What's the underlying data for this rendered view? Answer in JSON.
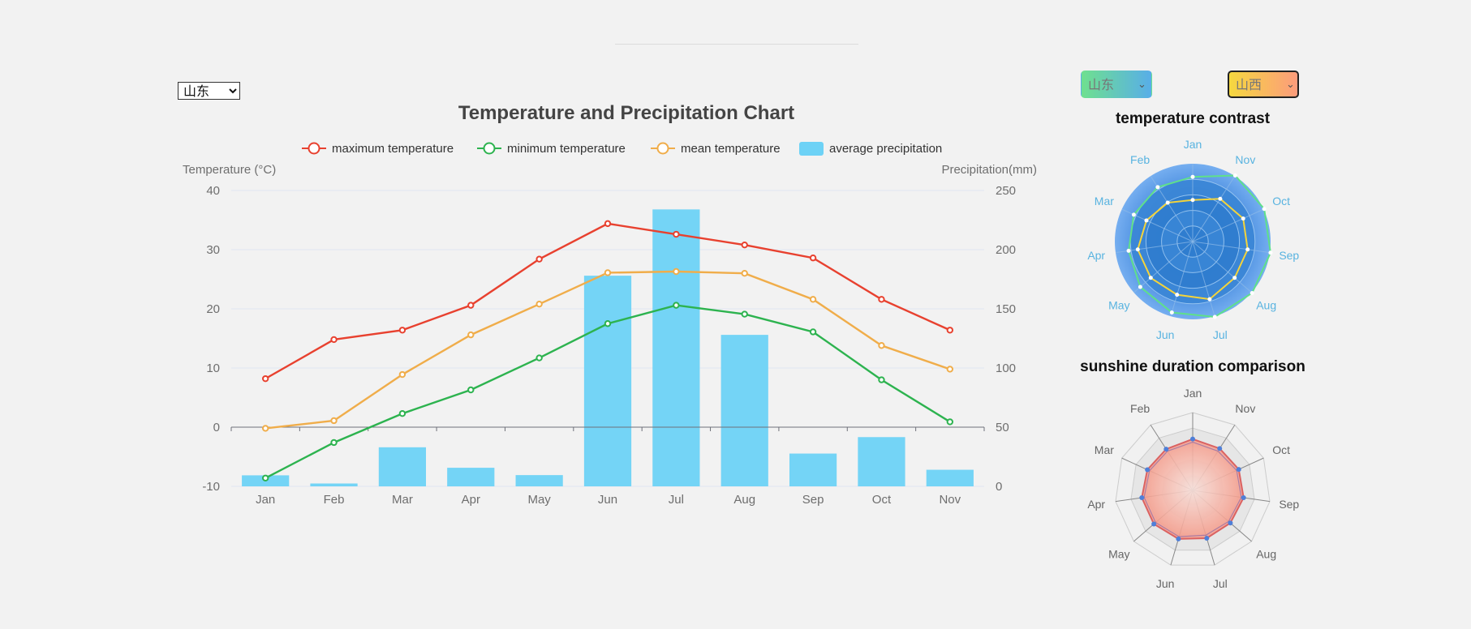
{
  "province_select": {
    "selected": "山东",
    "options": [
      "山东"
    ]
  },
  "left_gradient_select": {
    "selected": "山东"
  },
  "right_gradient_select": {
    "selected": "山西"
  },
  "colors": {
    "max": "#e8412f",
    "min": "#2db34f",
    "mean": "#f0ad4a",
    "precip": "#6dd2f6",
    "axis_text": "#6e6e6e",
    "radar_label": "#58b3e0"
  },
  "chart_data": [
    {
      "type": "bar+line",
      "title": "Temperature and Precipitation Chart",
      "categories": [
        "Jan",
        "Feb",
        "Mar",
        "Apr",
        "May",
        "Jun",
        "Jul",
        "Aug",
        "Sep",
        "Oct",
        "Nov"
      ],
      "ylabel_left": "Temperature (°C)",
      "ylabel_right": "Precipitation(mm)",
      "ylim_left": [
        -10,
        40
      ],
      "yticks_left": [
        "40",
        "30",
        "20",
        "10",
        "0",
        "-10"
      ],
      "ylim_right": [
        0,
        250
      ],
      "yticks_right": [
        "250",
        "200",
        "150",
        "100",
        "50",
        "0"
      ],
      "legend_position": "top",
      "series": [
        {
          "name": "maximum temperature",
          "type": "line",
          "axis": "left",
          "values": [
            8.2,
            14.8,
            16.4,
            20.6,
            28.4,
            34.4,
            32.6,
            30.8,
            28.6,
            21.6,
            16.4
          ]
        },
        {
          "name": "minimum temperature",
          "type": "line",
          "axis": "left",
          "values": [
            -8.6,
            -2.6,
            2.3,
            6.3,
            11.7,
            17.5,
            20.6,
            19.1,
            16.1,
            8.0,
            0.9
          ]
        },
        {
          "name": "mean temperature",
          "type": "line",
          "axis": "left",
          "values": [
            -0.2,
            1.1,
            8.9,
            15.6,
            20.8,
            26.1,
            26.3,
            26.0,
            21.6,
            13.8,
            9.8
          ]
        },
        {
          "name": "average precipitation",
          "type": "bar",
          "axis": "right",
          "values": [
            9.3,
            2.4,
            33,
            15.7,
            9.5,
            178,
            234,
            128,
            27.7,
            41.6,
            14
          ]
        }
      ]
    },
    {
      "type": "radar",
      "title": "temperature contrast",
      "categories": [
        "Jan",
        "Nov",
        "Oct",
        "Sep",
        "Aug",
        "Jul",
        "Jun",
        "May",
        "Apr",
        "Mar",
        "Feb"
      ],
      "max": 40,
      "series": [
        {
          "name": "山东",
          "values": [
            14,
            17,
            17,
            17,
            17,
            17,
            16,
            15,
            14,
            14,
            14
          ]
        },
        {
          "name": "山西",
          "values": [
            9,
            11,
            12,
            12,
            12,
            13,
            12,
            12,
            12,
            11,
            10
          ]
        }
      ]
    },
    {
      "type": "radar",
      "title": "sunshine duration comparison",
      "categories": [
        "Jan",
        "Nov",
        "Oct",
        "Sep",
        "Aug",
        "Jul",
        "Jun",
        "May",
        "Apr",
        "Mar",
        "Feb"
      ],
      "max": 10,
      "series": [
        {
          "name": "山东",
          "values": [
            6.6,
            6.4,
            6.5,
            6.6,
            6.4,
            6.4,
            6.5,
            6.6,
            6.6,
            6.4,
            6.3
          ]
        },
        {
          "name": "山西",
          "values": [
            6.2,
            6.0,
            6.2,
            6.3,
            6.1,
            6.0,
            6.2,
            6.3,
            6.3,
            6.1,
            6.0
          ]
        }
      ]
    }
  ]
}
